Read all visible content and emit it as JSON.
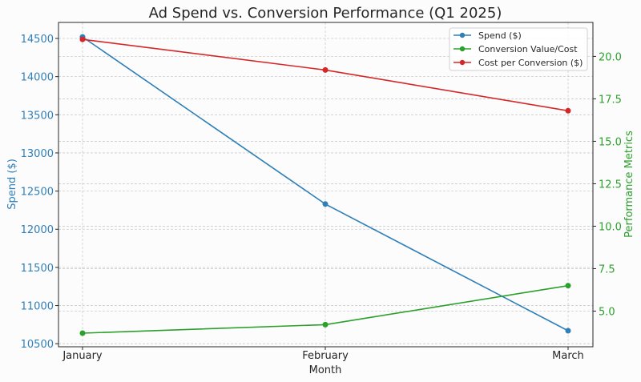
{
  "chart_data": {
    "type": "line",
    "title": "Ad Spend vs. Conversion Performance (Q1 2025)",
    "xlabel": "Month",
    "ylabel_left": "Spend ($)",
    "ylabel_right": "Performance Metrics",
    "categories": [
      "January",
      "February",
      "March"
    ],
    "ylim_left": [
      10460,
      14710
    ],
    "yticks_left": [
      10500,
      11000,
      11500,
      12000,
      12500,
      13000,
      13500,
      14000,
      14500
    ],
    "ylim_right": [
      2.9,
      22.0
    ],
    "yticks_right": [
      5.0,
      7.5,
      10.0,
      12.5,
      15.0,
      17.5,
      20.0
    ],
    "grid": true,
    "legend_position": "top-right",
    "series": [
      {
        "name": "Spend ($)",
        "axis": "left",
        "color": "#2f7fb8",
        "values": [
          14520,
          12330,
          10670
        ]
      },
      {
        "name": "Conversion Value/Cost",
        "axis": "right",
        "color": "#2ca02c",
        "values": [
          3.7,
          4.2,
          6.5
        ]
      },
      {
        "name": "Cost per Conversion ($)",
        "axis": "right",
        "color": "#d62728",
        "values": [
          21.0,
          19.2,
          16.8
        ]
      }
    ],
    "colors": {
      "left_axis": "#2f7fb8",
      "right_axis": "#2ca02c",
      "text": "#262626",
      "grid": "#cccccc"
    }
  }
}
